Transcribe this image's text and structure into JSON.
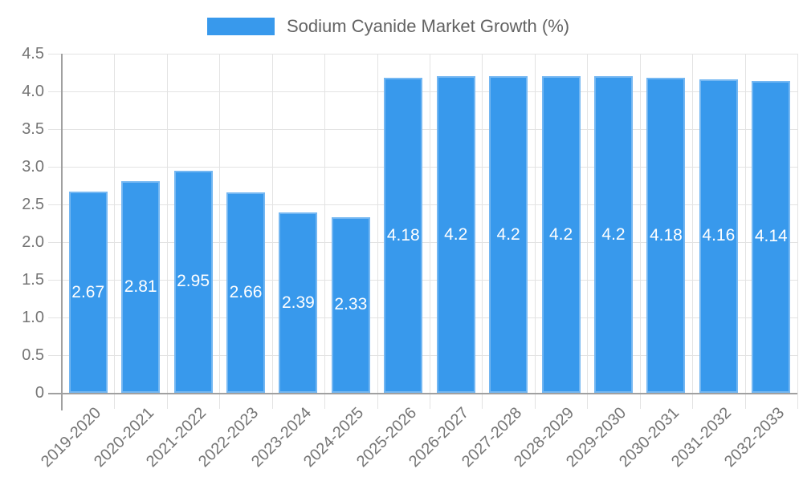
{
  "chart_data": {
    "type": "bar",
    "title": "",
    "legend": "Sodium Cyanide Market Growth (%)",
    "legend_position": "top",
    "categories": [
      "2019-2020",
      "2020-2021",
      "2021-2022",
      "2022-2023",
      "2023-2024",
      "2024-2025",
      "2025-2026",
      "2026-2027",
      "2027-2028",
      "2028-2029",
      "2029-2030",
      "2030-2031",
      "2031-2032",
      "2032-2033"
    ],
    "values": [
      2.67,
      2.81,
      2.95,
      2.66,
      2.39,
      2.33,
      4.18,
      4.2,
      4.2,
      4.2,
      4.2,
      4.18,
      4.16,
      4.14
    ],
    "value_labels": [
      "2.67",
      "2.81",
      "2.95",
      "2.66",
      "2.39",
      "2.33",
      "4.18",
      "4.2",
      "4.2",
      "4.2",
      "4.2",
      "4.18",
      "4.16",
      "4.14"
    ],
    "xlabel": "",
    "ylabel": "",
    "ylim": [
      0,
      4.5
    ],
    "ytick_step": 0.5,
    "yticks": [
      "0",
      "0.5",
      "1.0",
      "1.5",
      "2.0",
      "2.5",
      "3.0",
      "3.5",
      "4.0",
      "4.5"
    ],
    "grid": true,
    "colors": {
      "bar": "#3899ec",
      "grid": "#e3e3e3",
      "axis": "#a0a0a0",
      "axis_text": "#757575",
      "legend_text": "#636363",
      "value_text": "#ffffff",
      "background": "#ffffff"
    }
  }
}
